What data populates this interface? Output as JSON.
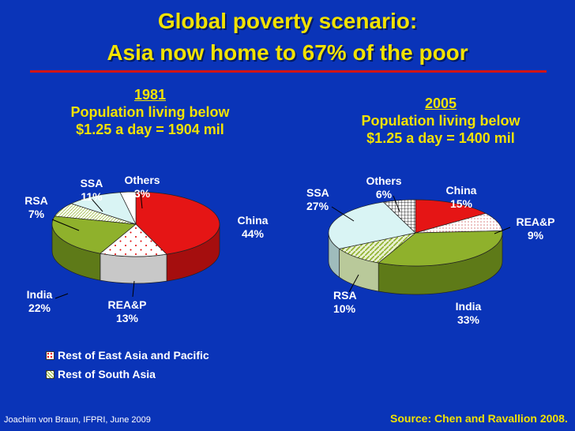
{
  "slide": {
    "title_line1": "Global poverty scenario:",
    "title_line2": "Asia now home to 67% of the poor",
    "footer_left": "Joachim von Braun, IFPRI, June 2009",
    "source": "Source: Chen and Ravallion 2008."
  },
  "legend": {
    "rea": "Rest of East Asia and Pacific",
    "rsa": "Rest of South Asia"
  },
  "colors": {
    "background": "#0a34b8",
    "title": "#f2e200",
    "china": "#e51515",
    "india": "#8fb12c",
    "ssa": "#d9f4f4",
    "others": "#ffffff",
    "rea": "#ffffff",
    "rsa": "#ffffff"
  },
  "chart_data": [
    {
      "type": "pie",
      "year": "1981",
      "subtitle_line1": "Population living below",
      "subtitle_line2": "$1.25 a day = 1904 mil",
      "slices": [
        {
          "name": "China",
          "value": 44,
          "label": "44%"
        },
        {
          "name": "REA&P",
          "value": 13,
          "label": "13%"
        },
        {
          "name": "India",
          "value": 22,
          "label": "22%"
        },
        {
          "name": "RSA",
          "value": 7,
          "label": "7%"
        },
        {
          "name": "SSA",
          "value": 11,
          "label": "11%"
        },
        {
          "name": "Others",
          "value": 3,
          "label": "3%"
        }
      ]
    },
    {
      "type": "pie",
      "year": "2005",
      "subtitle_line1": "Population living below",
      "subtitle_line2": "$1.25 a day = 1400 mil",
      "slices": [
        {
          "name": "China",
          "value": 15,
          "label": "15%"
        },
        {
          "name": "REA&P",
          "value": 9,
          "label": "9%"
        },
        {
          "name": "India",
          "value": 33,
          "label": "33%"
        },
        {
          "name": "RSA",
          "value": 10,
          "label": "10%"
        },
        {
          "name": "SSA",
          "value": 27,
          "label": "27%"
        },
        {
          "name": "Others",
          "value": 6,
          "label": "6%"
        }
      ]
    }
  ]
}
